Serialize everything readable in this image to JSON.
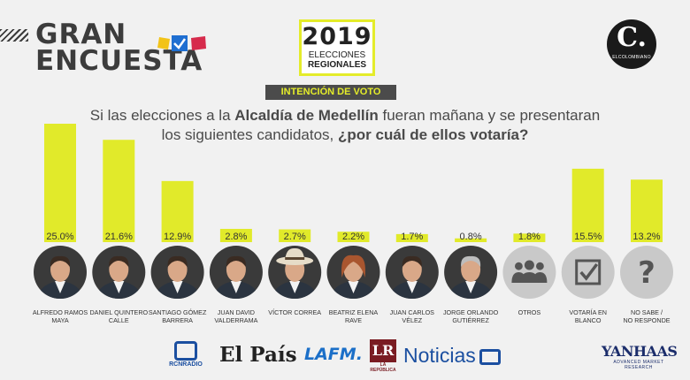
{
  "header": {
    "title_line1": "GRAN",
    "title_line2": "ENCUESTA",
    "event_year": "2019",
    "event_line1": "ELECCIONES",
    "event_line2": "REGIONALES",
    "brand_letter": "C.",
    "brand_name": "ELCOLOMBIANO",
    "badge": "INTENCIÓN DE VOTO"
  },
  "question": {
    "part1": "Si las elecciones a la ",
    "bold1": "Alcaldía de Medellín",
    "part2": " fueran mañana y se presentaran los siguientes candidatos, ",
    "bold2": "¿por cuál de ellos votaría?"
  },
  "chart_data": {
    "type": "bar",
    "title": "Si las elecciones a la Alcaldía de Medellín fueran mañana y se presentaran los siguientes candidatos, ¿por cuál de ellos votaría?",
    "categories": [
      "ALFREDO RAMOS MAYA",
      "DANIEL QUINTERO CALLE",
      "SANTIAGO GÓMEZ BARRERA",
      "JUAN DAVID VALDERRAMA",
      "VÍCTOR CORREA",
      "BEATRIZ ELENA RAVE",
      "JUAN CARLOS VÉLEZ",
      "JORGE ORLANDO GUTIÉRREZ",
      "OTROS",
      "VOTARÍA EN BLANCO",
      "NO SABE / NO RESPONDE"
    ],
    "label_lines": [
      [
        "ALFREDO RAMOS",
        "MAYA"
      ],
      [
        "DANIEL QUINTERO",
        "CALLE"
      ],
      [
        "SANTIAGO GÓMEZ",
        "BARRERA"
      ],
      [
        "JUAN DAVID",
        "VALDERRAMA"
      ],
      [
        "VÍCTOR CORREA"
      ],
      [
        "BEATRIZ ELENA",
        "RAVE"
      ],
      [
        "JUAN CARLOS",
        "VÉLEZ"
      ],
      [
        "JORGE ORLANDO",
        "GUTIÉRREZ"
      ],
      [
        "OTROS"
      ],
      [
        "VOTARÍA EN",
        "BLANCO"
      ],
      [
        "NO SABE /",
        "NO RESPONDE"
      ]
    ],
    "values": [
      25.0,
      21.6,
      12.9,
      2.8,
      2.7,
      2.2,
      1.7,
      0.8,
      1.8,
      15.5,
      13.2
    ],
    "value_labels": [
      "25.0%",
      "21.6%",
      "12.9%",
      "2.8%",
      "2.7%",
      "2.2%",
      "1.7%",
      "0.8%",
      "1.8%",
      "15.5%",
      "13.2%"
    ],
    "avatar_icons": [
      "person",
      "person",
      "person",
      "person",
      "person-hat",
      "person-woman",
      "person",
      "person",
      "group-icon",
      "checkbox-icon",
      "question-icon"
    ],
    "ylim": [
      0,
      25
    ],
    "grid": false,
    "legend": "none",
    "colors": {
      "bar": "#e1ea2a",
      "avatar_bg": "#3a3a3a",
      "icon_bg": "#c9c9c9"
    }
  },
  "sponsors": {
    "rcn": "RCNRADIO",
    "pais": "El País",
    "lafm": "LAFM.",
    "lr": "LR",
    "lr_sub": "LA REPÚBLICA",
    "noticias": "Noticias",
    "yanhaas": "YANHAAS",
    "yanhaas_sub": "ADVANCED MARKET RESEARCH"
  }
}
